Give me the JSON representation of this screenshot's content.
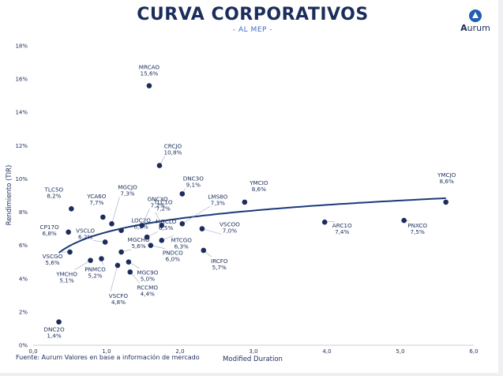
{
  "header": {
    "title": "CURVA CORPORATIVOS",
    "subtitle": "- AL MEP -"
  },
  "logo": {
    "text": "Aurum",
    "icon": "aurum-logo-icon"
  },
  "footer": {
    "source": "Fuente: Aurum Valores en base a información de mercado"
  },
  "colors": {
    "title": "#1b2d5b",
    "accent": "#3c6fc4",
    "point": "#1b2d5b",
    "curve": "#1b3a7a"
  },
  "chart_data": {
    "type": "scatter",
    "xlabel": "Modified Duration",
    "ylabel": "Rendimiento (TIR)",
    "xlim": [
      0,
      6
    ],
    "ylim": [
      0,
      18
    ],
    "x_ticks": [
      "0,0",
      "1,0",
      "2,0",
      "3,0",
      "4,0",
      "5,0",
      "6,0"
    ],
    "y_ticks": [
      "0%",
      "2%",
      "4%",
      "6%",
      "8%",
      "10%",
      "12%",
      "14%",
      "16%",
      "18%"
    ],
    "grid": false,
    "points": [
      {
        "name": "DNC2O",
        "value": "1,4%",
        "x": 0.35,
        "y": 1.4
      },
      {
        "name": "VSCGO",
        "value": "5,6%",
        "x": 0.5,
        "y": 5.6
      },
      {
        "name": "CP17O",
        "value": "6,8%",
        "x": 0.48,
        "y": 6.8
      },
      {
        "name": "TLC5O",
        "value": "8,2%",
        "x": 0.52,
        "y": 8.2
      },
      {
        "name": "YMCHO",
        "value": "5,1%",
        "x": 0.78,
        "y": 5.1
      },
      {
        "name": "PNMCO",
        "value": "5,2%",
        "x": 0.93,
        "y": 5.2
      },
      {
        "name": "VSCLO",
        "value": "6,2%",
        "x": 0.98,
        "y": 6.2
      },
      {
        "name": "YCA6O",
        "value": "7,7%",
        "x": 0.95,
        "y": 7.7
      },
      {
        "name": "LOC2O",
        "value": "6,9%",
        "x": 1.2,
        "y": 6.9
      },
      {
        "name": "MGCJO",
        "value": "7,3%",
        "x": 1.07,
        "y": 7.3
      },
      {
        "name": "GNCXO",
        "value": "7,2%",
        "x": 1.48,
        "y": 7.2
      },
      {
        "name": "MGCLO",
        "value": "6,5%",
        "x": 1.55,
        "y": 6.5
      },
      {
        "name": "TLC1O",
        "value": "7,2%",
        "x": 1.75,
        "y": 7.2
      },
      {
        "name": "MGCHO",
        "value": "5,6%",
        "x": 1.2,
        "y": 5.6
      },
      {
        "name": "MGC9O",
        "value": "5,0%",
        "x": 1.3,
        "y": 5.0
      },
      {
        "name": "VSCFO",
        "value": "4,8%",
        "x": 1.15,
        "y": 4.8
      },
      {
        "name": "RCCMO",
        "value": "4,4%",
        "x": 1.32,
        "y": 4.4
      },
      {
        "name": "PNDCO",
        "value": "6,0%",
        "x": 1.6,
        "y": 6.0
      },
      {
        "name": "MTCGO",
        "value": "6,3%",
        "x": 1.75,
        "y": 6.3
      },
      {
        "name": "MRCAO",
        "value": "15,6%",
        "x": 1.58,
        "y": 15.6
      },
      {
        "name": "CRCJO",
        "value": "10,8%",
        "x": 1.72,
        "y": 10.8
      },
      {
        "name": "DNC3O",
        "value": "9,1%",
        "x": 2.03,
        "y": 9.1
      },
      {
        "name": "LMS8O",
        "value": "7,3%",
        "x": 2.03,
        "y": 7.3
      },
      {
        "name": "VSCOO",
        "value": "7,0%",
        "x": 2.3,
        "y": 7.0
      },
      {
        "name": "IRCFO",
        "value": "5,7%",
        "x": 2.32,
        "y": 5.7
      },
      {
        "name": "YMCIO",
        "value": "8,6%",
        "x": 2.88,
        "y": 8.6
      },
      {
        "name": "ARC1O",
        "value": "7,4%",
        "x": 3.97,
        "y": 7.4
      },
      {
        "name": "PNXCO",
        "value": "7,5%",
        "x": 5.05,
        "y": 7.5
      },
      {
        "name": "YMCJO",
        "value": "8,6%",
        "x": 5.62,
        "y": 8.6
      }
    ],
    "trendline": {
      "type": "logarithmic",
      "x_range": [
        0.35,
        5.62
      ],
      "a": 6.8,
      "b": 1.18
    }
  }
}
